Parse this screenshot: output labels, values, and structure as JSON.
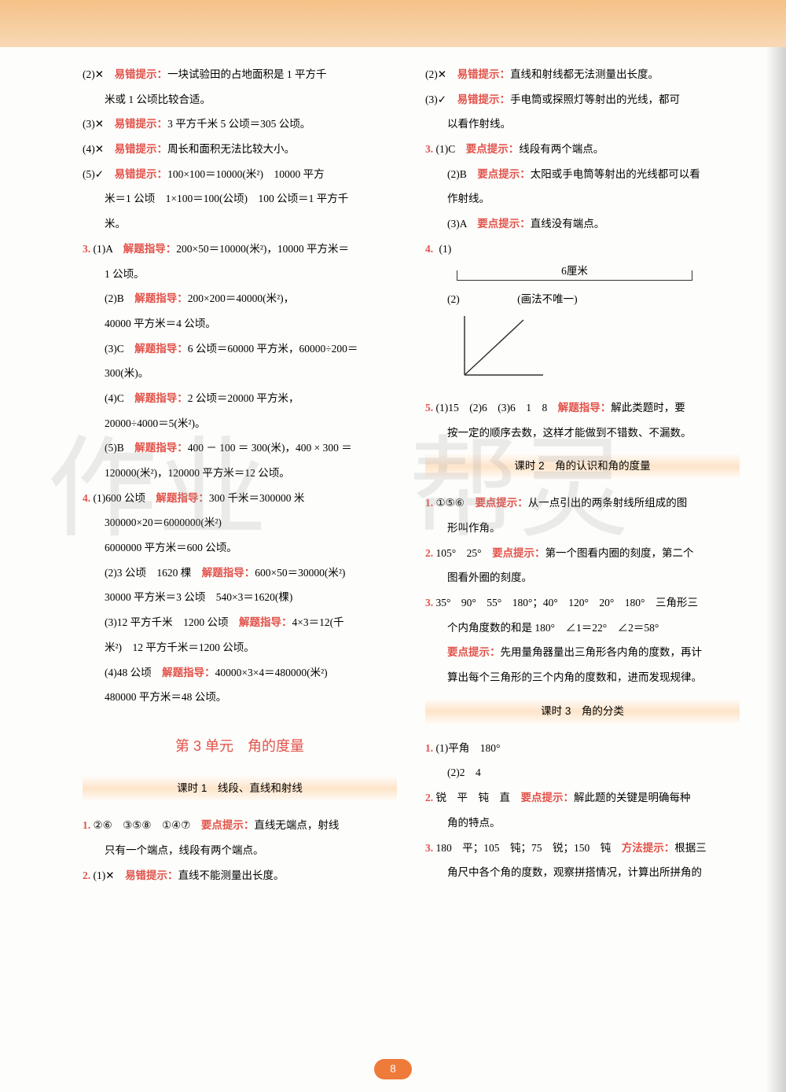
{
  "page_number": "8",
  "colors": {
    "accent": "#e2524a",
    "band_bg": "#fde4c9",
    "header_bg": "#f5c187",
    "page_num_bg": "#ee7b3a"
  },
  "left": {
    "items": [
      {
        "pre": "(2)✕　",
        "hint": "易错提示：",
        "text": "一块试验田的占地面积是 1 平方千"
      },
      {
        "pre": "",
        "text": "米或 1 公顷比较合适。",
        "indent": true
      },
      {
        "pre": "(3)✕　",
        "hint": "易错提示：",
        "text": "3 平方千米 5 公顷＝305 公顷。"
      },
      {
        "pre": "(4)✕　",
        "hint": "易错提示：",
        "text": "周长和面积无法比较大小。"
      },
      {
        "pre": "(5)✓　",
        "hint": "易错提示：",
        "text": "100×100＝10000(米²)　10000 平方"
      },
      {
        "pre": "",
        "text": "米＝1 公顷　1×100＝100(公顷)　100 公顷＝1 平方千",
        "indent": true
      },
      {
        "pre": "",
        "text": "米。",
        "indent": true
      },
      {
        "num": "3.",
        "pre": "(1)A　",
        "hint": "解题指导：",
        "text": "200×50＝10000(米²)，10000 平方米＝"
      },
      {
        "pre": "",
        "text": "1 公顷。",
        "indent": true
      },
      {
        "pre": "(2)B　",
        "hint": "解题指导：",
        "text": "200×200＝40000(米²)，",
        "indent": true
      },
      {
        "pre": "",
        "text": "40000 平方米＝4 公顷。",
        "indent": true
      },
      {
        "pre": "(3)C　",
        "hint": "解题指导：",
        "text": "6 公顷＝60000 平方米，60000÷200＝",
        "indent": true
      },
      {
        "pre": "",
        "text": "300(米)。",
        "indent": true
      },
      {
        "pre": "(4)C　",
        "hint": "解题指导：",
        "text": "2 公顷＝20000 平方米，",
        "indent": true
      },
      {
        "pre": "",
        "text": "20000÷4000＝5(米²)。",
        "indent": true
      },
      {
        "pre": "(5)B　",
        "hint": "解题指导：",
        "text": "400 － 100 ＝ 300(米)，400 × 300 ＝",
        "indent": true
      },
      {
        "pre": "",
        "text": "120000(米²)，120000 平方米＝12 公顷。",
        "indent": true
      },
      {
        "num": "4.",
        "pre": "(1)600 公顷　",
        "hint": "解题指导：",
        "text": "300 千米＝300000 米"
      },
      {
        "pre": "",
        "text": "300000×20＝6000000(米²)",
        "indent": true
      },
      {
        "pre": "",
        "text": "6000000 平方米＝600 公顷。",
        "indent": true
      },
      {
        "pre": "(2)3 公顷　1620 棵　",
        "hint": "解题指导：",
        "text": "600×50＝30000(米²)",
        "indent": true
      },
      {
        "pre": "",
        "text": "30000 平方米＝3 公顷　540×3＝1620(棵)",
        "indent": true
      },
      {
        "pre": "(3)12 平方千米　1200 公顷　",
        "hint": "解题指导：",
        "text": "4×3＝12(千",
        "indent": true
      },
      {
        "pre": "",
        "text": "米²)　12 平方千米＝1200 公顷。",
        "indent": true
      },
      {
        "pre": "(4)48 公顷　",
        "hint": "解题指导：",
        "text": "40000×3×4＝480000(米²)",
        "indent": true
      },
      {
        "pre": "",
        "text": "480000 平方米＝48 公顷。",
        "indent": true
      }
    ],
    "unit_title": "第 3 单元　角的度量",
    "lesson1_title": "课时 1　线段、直线和射线",
    "after_lesson1": [
      {
        "num": "1.",
        "pre": "②⑥　③⑤⑧　①④⑦　",
        "hint": "要点提示：",
        "text": "直线无端点，射线"
      },
      {
        "pre": "",
        "text": "只有一个端点，线段有两个端点。",
        "indent": true
      },
      {
        "num": "2.",
        "pre": "(1)✕　",
        "hint": "易错提示：",
        "text": "直线不能测量出长度。"
      }
    ]
  },
  "right": {
    "items_top": [
      {
        "pre": "(2)✕　",
        "hint": "易错提示：",
        "text": "直线和射线都无法测量出长度。"
      },
      {
        "pre": "(3)✓　",
        "hint": "易错提示：",
        "text": "手电筒或探照灯等射出的光线，都可"
      },
      {
        "pre": "",
        "text": "以看作射线。",
        "indent": true
      },
      {
        "num": "3.",
        "pre": "(1)C　",
        "hint": "要点提示：",
        "text": "线段有两个端点。"
      },
      {
        "pre": "(2)B　",
        "hint": "要点提示：",
        "text": "太阳或手电筒等射出的光线都可以看",
        "indent": true
      },
      {
        "pre": "",
        "text": "作射线。",
        "indent": true
      },
      {
        "pre": "(3)A　",
        "hint": "要点提示：",
        "text": "直线没有端点。",
        "indent": true
      }
    ],
    "q4_label": "4.",
    "q4_1": "(1)",
    "ruler_label": "6厘米",
    "q4_2": "(2)",
    "q4_2_note": "(画法不唯一)",
    "items_mid": [
      {
        "num": "5.",
        "pre": "(1)15　(2)6　(3)6　1　8　",
        "hint": "解题指导：",
        "text": "解此类题时，要"
      },
      {
        "pre": "",
        "text": "按一定的顺序去数，这样才能做到不错数、不漏数。",
        "indent": true
      }
    ],
    "lesson2_title": "课时 2　角的认识和角的度量",
    "items_l2": [
      {
        "num": "1.",
        "pre": "①⑤⑥　",
        "hint": "要点提示：",
        "text": "从一点引出的两条射线所组成的图"
      },
      {
        "pre": "",
        "text": "形叫作角。",
        "indent": true
      },
      {
        "num": "2.",
        "pre": "105°　25°　",
        "hint": "要点提示：",
        "text": "第一个图看内圈的刻度，第二个"
      },
      {
        "pre": "",
        "text": "图看外圈的刻度。",
        "indent": true
      },
      {
        "num": "3.",
        "pre": "",
        "text": "35°　90°　55°　180°；40°　120°　20°　180°　三角形三"
      },
      {
        "pre": "",
        "text": "个内角度数的和是 180°　∠1＝22°　∠2＝58°",
        "indent": true
      },
      {
        "pre": "",
        "hint": "要点提示：",
        "text": "先用量角器量出三角形各内角的度数，再计",
        "indent": true
      },
      {
        "pre": "",
        "text": "算出每个三角形的三个内角的度数和，进而发现规律。",
        "indent": true
      }
    ],
    "lesson3_title": "课时 3　角的分类",
    "items_l3": [
      {
        "num": "1.",
        "pre": "",
        "text": "(1)平角　180°"
      },
      {
        "pre": "",
        "text": "(2)2　4",
        "indent": true
      },
      {
        "num": "2.",
        "pre": "锐　平　钝　直　",
        "hint": "要点提示：",
        "text": "解此题的关键是明确每种"
      },
      {
        "pre": "",
        "text": "角的特点。",
        "indent": true
      },
      {
        "num": "3.",
        "pre": "180　平；105　钝；75　锐；150　钝　",
        "hint": "方法提示：",
        "text": "根据三"
      },
      {
        "pre": "",
        "text": "角尺中各个角的度数，观察拼搭情况，计算出所拼角的",
        "indent": true
      }
    ]
  }
}
